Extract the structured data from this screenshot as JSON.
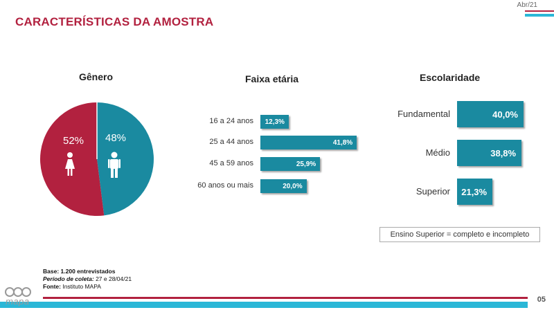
{
  "header": {
    "title": "CARACTERÍSTICAS DA AMOSTRA",
    "date": "Abr/21"
  },
  "colors": {
    "brand_red": "#b2213f",
    "teal": "#1a8aa0",
    "cyan": "#2bb7d7"
  },
  "chart_data": [
    {
      "type": "pie",
      "title": "Gênero",
      "slices": [
        {
          "label": "Feminino",
          "value": 52,
          "display": "52%",
          "color": "#b2213f",
          "icon": "female-icon"
        },
        {
          "label": "Masculino",
          "value": 48,
          "display": "48%",
          "color": "#1a8aa0",
          "icon": "male-icon"
        }
      ]
    },
    {
      "type": "bar",
      "orientation": "horizontal",
      "title": "Faixa etária",
      "categories": [
        "16 a 24 anos",
        "25 a 44 anos",
        "45 a 59 anos",
        "60 anos ou mais"
      ],
      "values": [
        12.3,
        41.8,
        25.9,
        20.0
      ],
      "labels": [
        "12,3%",
        "41,8%",
        "25,9%",
        "20,0%"
      ]
    },
    {
      "type": "bar",
      "orientation": "horizontal",
      "title": "Escolaridade",
      "categories": [
        "Fundamental",
        "Médio",
        "Superior"
      ],
      "values": [
        40.0,
        38.8,
        21.3
      ],
      "labels": [
        "40,0%",
        "38,8%",
        "21,3%"
      ]
    }
  ],
  "note": "Ensino Superior = completo e incompleto",
  "footer": {
    "base_label": "Base:",
    "base_value": "1.200 entrevistados",
    "period_label": "Período de coleta:",
    "period_value": "27 e 28/04/21",
    "source_label": "Fonte:",
    "source_value": "Instituto MAPA",
    "logo_text": "mapa",
    "page_number": "05"
  }
}
